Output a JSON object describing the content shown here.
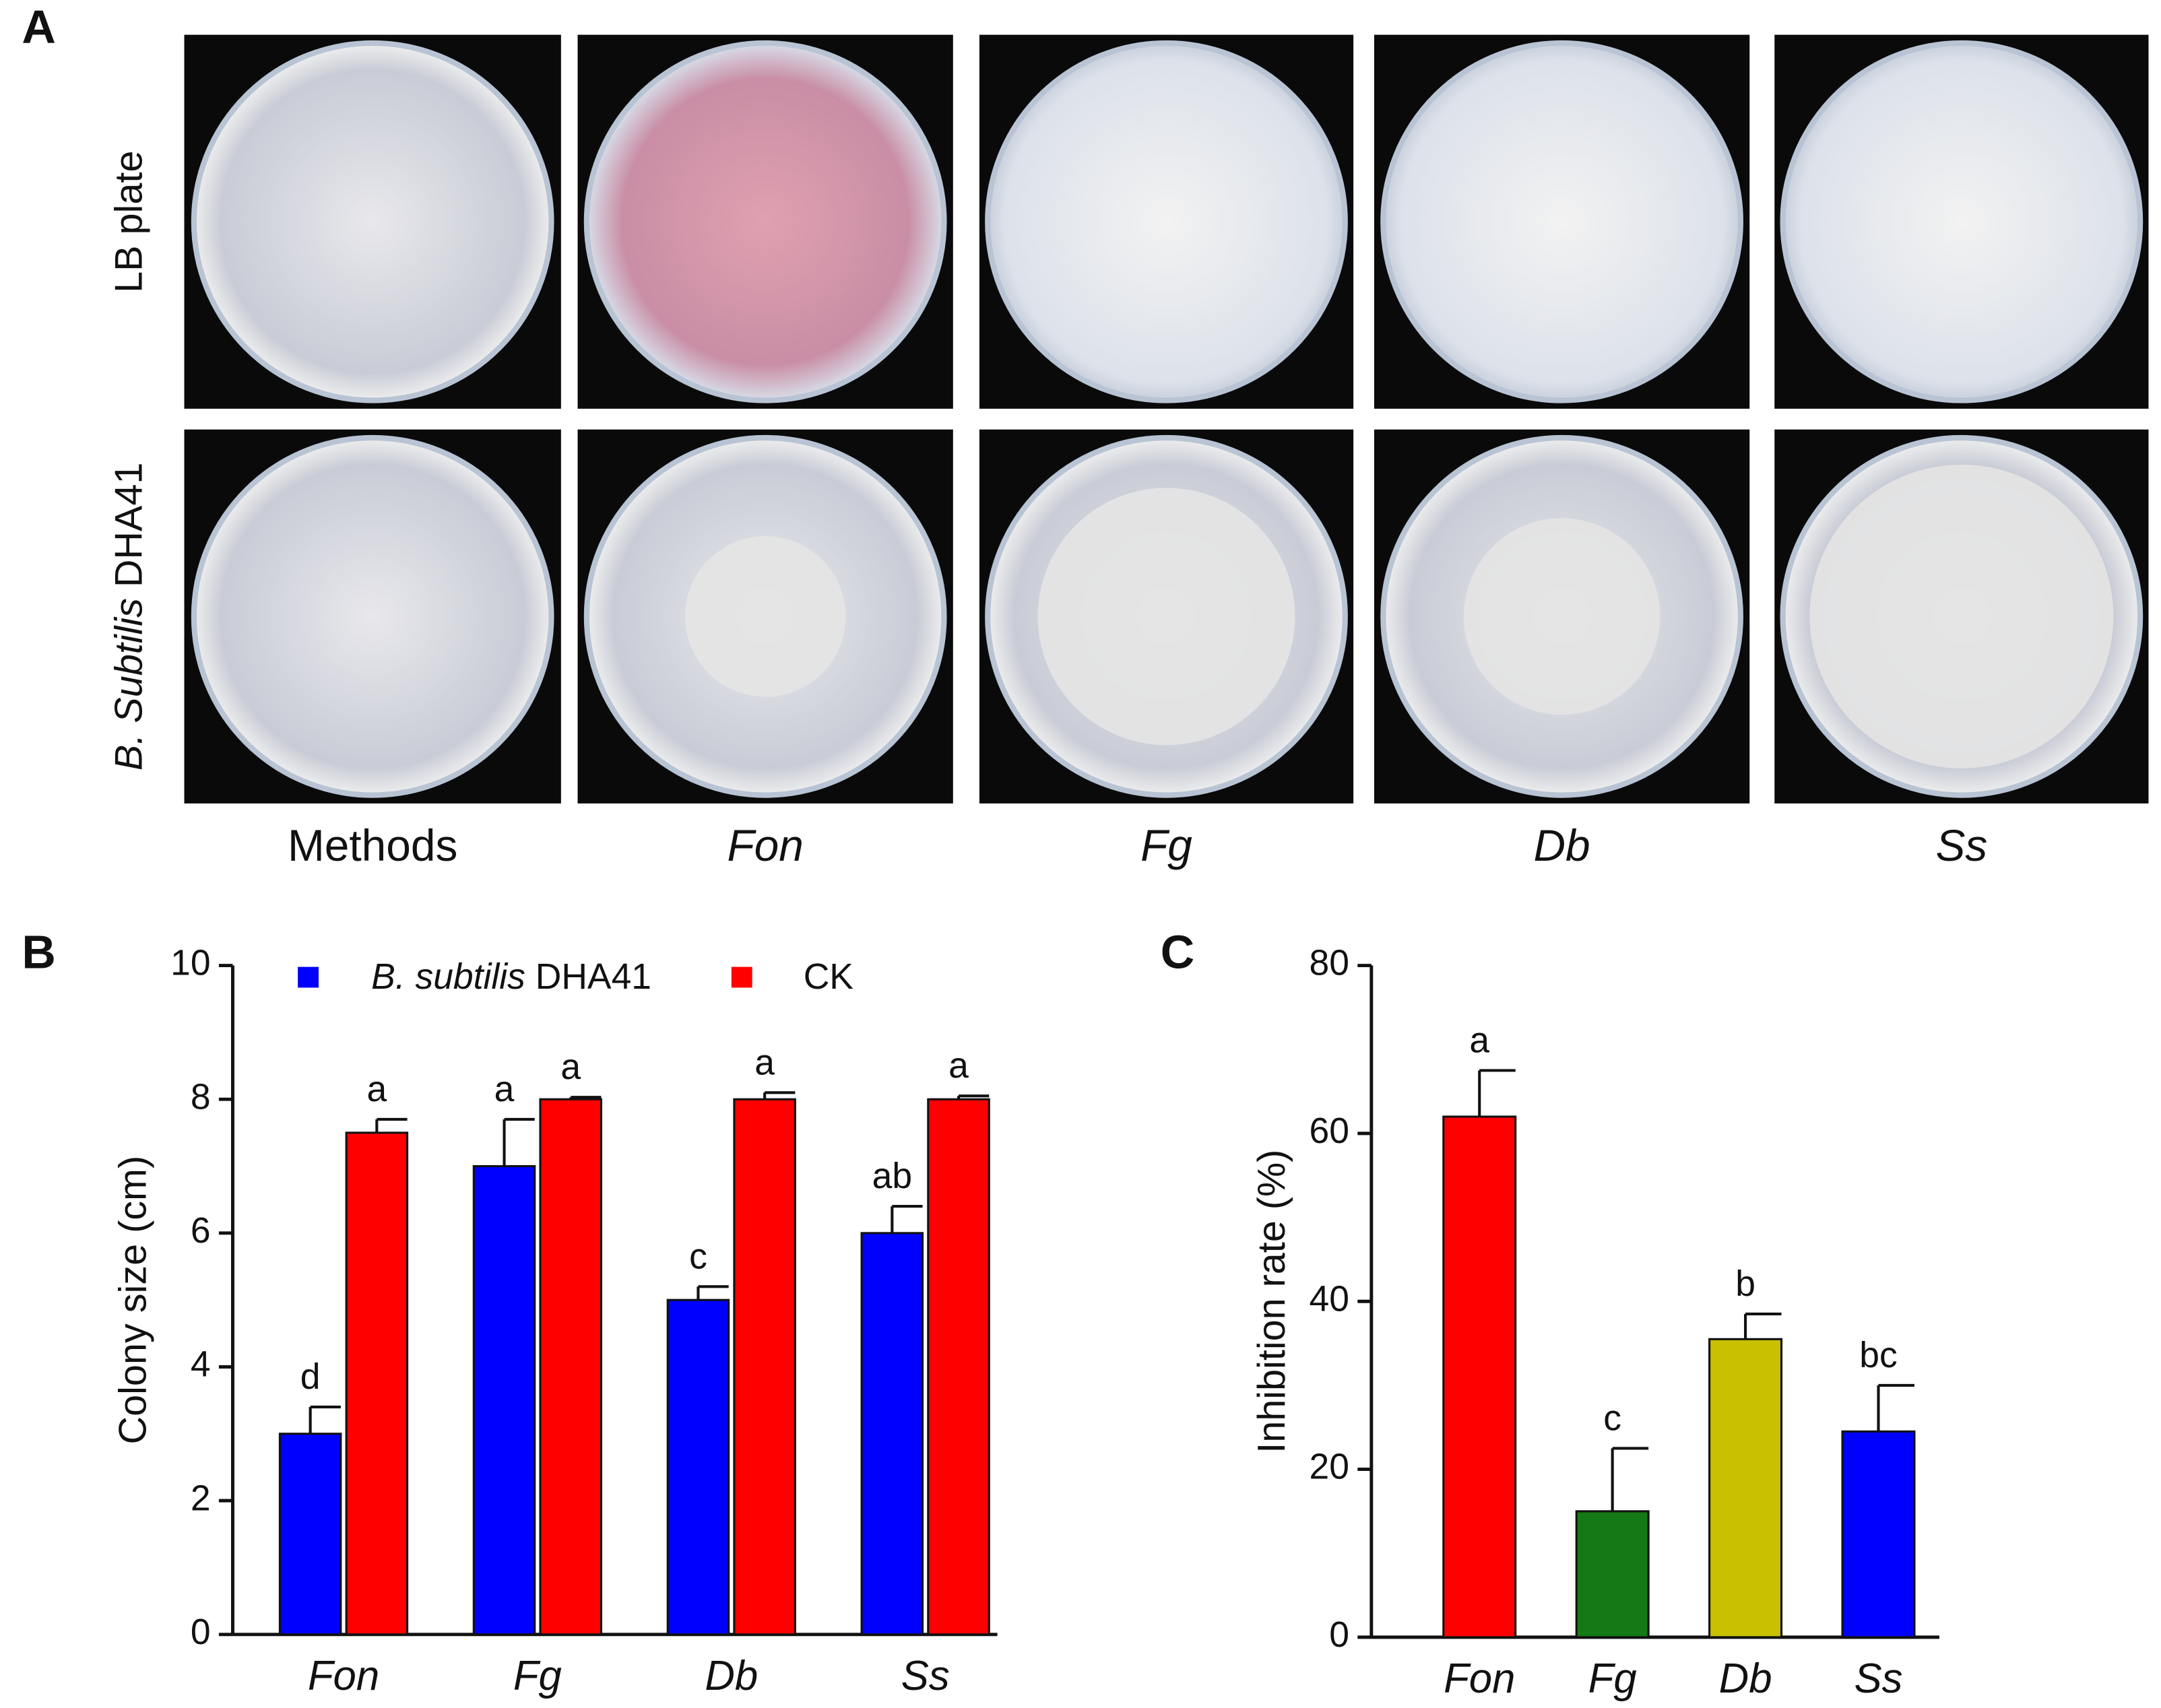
{
  "figure": {
    "panel_labels": [
      "A",
      "B",
      "C"
    ],
    "panel_a": {
      "row_labels": [
        "LB plate",
        "B. Subtilis DHA41"
      ],
      "column_labels": [
        "Methods",
        "Fon",
        "Fg",
        "Db",
        "Ss"
      ]
    }
  },
  "chart_data": [
    {
      "type": "bar",
      "ylabel": "Colony size (cm)",
      "categories": [
        "Fon",
        "Fg",
        "Db",
        "Ss"
      ],
      "series": [
        {
          "name": "B. subtilis DHA41",
          "color": "#0000ff",
          "values": [
            3.0,
            7.0,
            5.0,
            6.0
          ],
          "errors": [
            0.4,
            0.7,
            0.2,
            0.4
          ],
          "annotations": [
            "d",
            "a",
            "c",
            "ab"
          ]
        },
        {
          "name": "CK",
          "color": "#ff0000",
          "values": [
            7.5,
            8.0,
            8.0,
            8.0
          ],
          "errors": [
            0.2,
            0.03,
            0.1,
            0.05
          ],
          "annotations": [
            "a",
            "a",
            "a",
            "a"
          ]
        }
      ],
      "ylim": [
        0,
        10
      ],
      "yticks": [
        0,
        2,
        4,
        6,
        8,
        10
      ],
      "legend": "top"
    },
    {
      "type": "bar",
      "ylabel": "Inhibition rate (%)",
      "categories": [
        "Fon",
        "Fg",
        "Db",
        "Ss"
      ],
      "values": [
        62,
        15,
        35.5,
        24.5
      ],
      "errors": [
        5.5,
        7.5,
        3,
        5.5
      ],
      "colors": [
        "#ff0000",
        "#157a15",
        "#c8c000",
        "#0000ff"
      ],
      "annotations": [
        "a",
        "c",
        "b",
        "bc"
      ],
      "ylim": [
        0,
        80
      ],
      "yticks": [
        0,
        20,
        40,
        60,
        80
      ]
    }
  ]
}
